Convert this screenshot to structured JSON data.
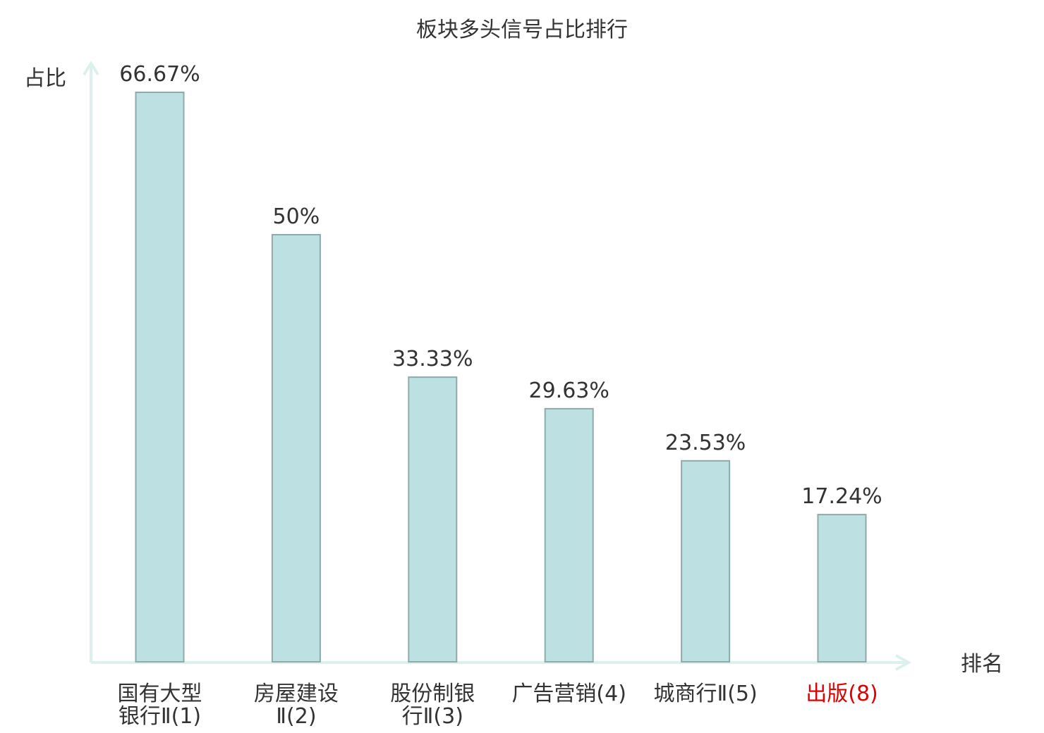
{
  "chart_data": {
    "type": "bar",
    "title": "板块多头信号占比排行",
    "ylabel": "占比",
    "xlabel": "排名",
    "ylim": [
      0,
      70
    ],
    "grid": false,
    "categories": [
      {
        "line1": "国有大型",
        "line2": "银行Ⅱ(1)",
        "highlight": false
      },
      {
        "line1": "房屋建设",
        "line2": "Ⅱ(2)",
        "highlight": false
      },
      {
        "line1": "股份制银",
        "line2": "行Ⅱ(3)",
        "highlight": false
      },
      {
        "line1": "广告营销(4)",
        "line2": "",
        "highlight": false
      },
      {
        "line1": "城商行Ⅱ(5)",
        "line2": "",
        "highlight": false
      },
      {
        "line1": "出版(8)",
        "line2": "",
        "highlight": true
      }
    ],
    "values": [
      66.67,
      50,
      33.33,
      29.63,
      23.53,
      17.24
    ],
    "value_labels": [
      "66.67%",
      "50%",
      "33.33%",
      "29.63%",
      "23.53%",
      "17.24%"
    ]
  },
  "colors": {
    "bar_fill": "#bde0e3",
    "bar_stroke": "#8faaab",
    "axis": "#dcf0ee",
    "text": "#333333",
    "highlight_text": "#e00000"
  }
}
